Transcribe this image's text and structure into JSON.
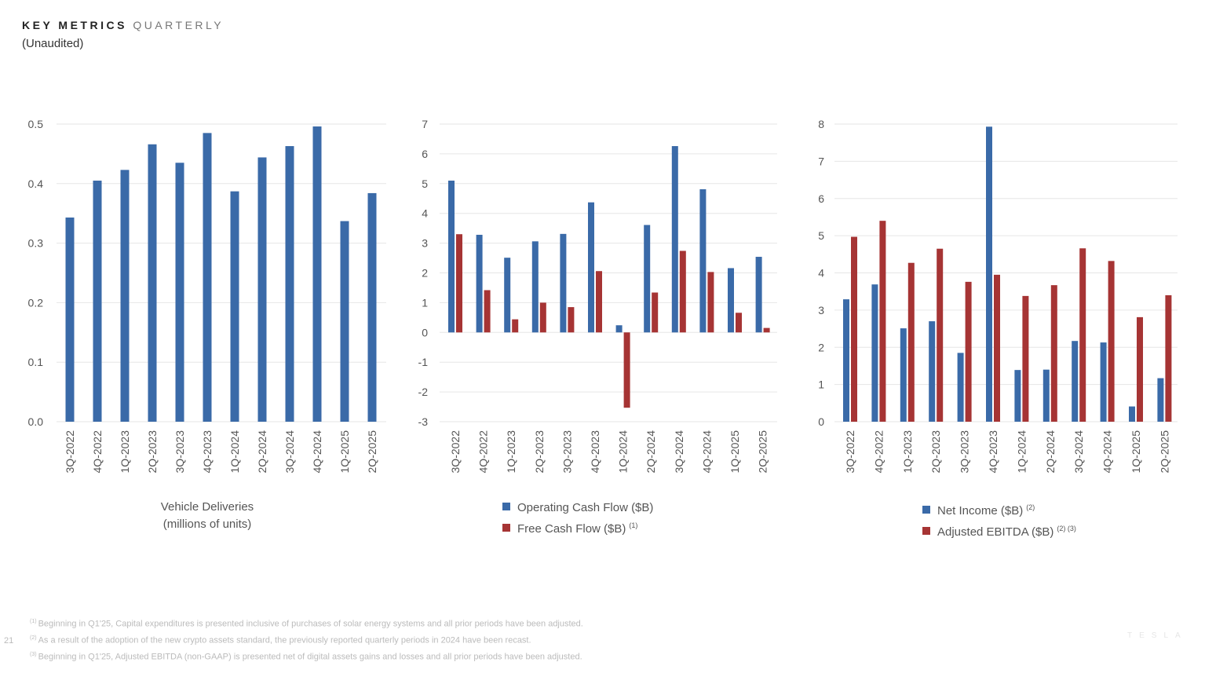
{
  "header": {
    "title_bold": "KEY METRICS",
    "title_light": "QUARTERLY",
    "subtitle": "(Unaudited)"
  },
  "colors": {
    "blue": "#3a6aa8",
    "red": "#a63434",
    "grid": "#e6e6e6"
  },
  "chart_data": [
    {
      "type": "bar",
      "categories": [
        "3Q-2022",
        "4Q-2022",
        "1Q-2023",
        "2Q-2023",
        "3Q-2023",
        "4Q-2023",
        "1Q-2024",
        "2Q-2024",
        "3Q-2024",
        "4Q-2024",
        "1Q-2025",
        "2Q-2025"
      ],
      "ylim": [
        0,
        0.5
      ],
      "yticks": [
        "0.0",
        "0.1",
        "0.2",
        "0.3",
        "0.4",
        "0.5"
      ],
      "grid": true,
      "caption": [
        "Vehicle Deliveries",
        "(millions of units)"
      ],
      "series": [
        {
          "values": [
            0.343,
            0.405,
            0.423,
            0.466,
            0.435,
            0.485,
            0.387,
            0.444,
            0.463,
            0.496,
            0.337,
            0.384
          ],
          "color": "#3a6aa8"
        }
      ]
    },
    {
      "type": "bar",
      "categories": [
        "3Q-2022",
        "4Q-2022",
        "1Q-2023",
        "2Q-2023",
        "3Q-2023",
        "4Q-2023",
        "1Q-2024",
        "2Q-2024",
        "3Q-2024",
        "4Q-2024",
        "1Q-2025",
        "2Q-2025"
      ],
      "ylim": [
        -3,
        7
      ],
      "yticks": [
        "-3",
        "-2",
        "-1",
        "0",
        "1",
        "2",
        "3",
        "4",
        "5",
        "6",
        "7"
      ],
      "grid": true,
      "legend_placement": "bottom",
      "series": [
        {
          "name": "Operating Cash Flow ($B)",
          "note": "",
          "values": [
            5.1,
            3.28,
            2.51,
            3.06,
            3.31,
            4.37,
            0.24,
            3.61,
            6.26,
            4.81,
            2.16,
            2.54
          ],
          "color": "#3a6aa8"
        },
        {
          "name": "Free Cash Flow ($B)",
          "note": "(1)",
          "values": [
            3.3,
            1.42,
            0.44,
            1.0,
            0.85,
            2.06,
            -2.53,
            1.34,
            2.74,
            2.03,
            0.66,
            0.15
          ],
          "color": "#a63434"
        }
      ]
    },
    {
      "type": "bar",
      "categories": [
        "3Q-2022",
        "4Q-2022",
        "1Q-2023",
        "2Q-2023",
        "3Q-2023",
        "4Q-2023",
        "1Q-2024",
        "2Q-2024",
        "3Q-2024",
        "4Q-2024",
        "1Q-2025",
        "2Q-2025"
      ],
      "ylim": [
        0,
        8
      ],
      "yticks": [
        "0",
        "1",
        "2",
        "3",
        "4",
        "5",
        "6",
        "7",
        "8"
      ],
      "grid": true,
      "legend_placement": "bottom",
      "series": [
        {
          "name": "Net Income ($B)",
          "note": "(2)",
          "values": [
            3.29,
            3.69,
            2.51,
            2.7,
            1.85,
            7.93,
            1.39,
            1.4,
            2.17,
            2.13,
            0.41,
            1.17
          ],
          "color": "#3a6aa8"
        },
        {
          "name": "Adjusted EBITDA ($B)",
          "note": "(2) (3)",
          "values": [
            4.97,
            5.4,
            4.27,
            4.65,
            3.76,
            3.95,
            3.38,
            3.67,
            4.66,
            4.32,
            2.81,
            3.4
          ],
          "color": "#a63434"
        }
      ]
    }
  ],
  "footnotes": [
    {
      "mark": "(1)",
      "text": "Beginning in Q1'25, Capital expenditures is presented inclusive of purchases of solar energy systems and all prior periods have been adjusted."
    },
    {
      "mark": "(2)",
      "text": "As a result of the adoption of the new crypto assets standard, the previously reported quarterly periods in 2024 have been recast."
    },
    {
      "mark": "(3)",
      "text": "Beginning in Q1'25, Adjusted EBITDA (non-GAAP) is presented net of digital assets gains and losses and all prior periods have been adjusted."
    }
  ],
  "page_number": "21",
  "logo": "TESLA"
}
